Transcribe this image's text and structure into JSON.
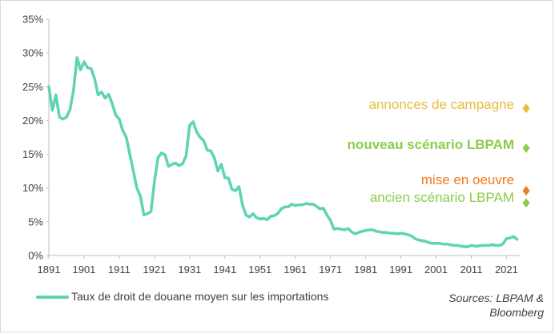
{
  "chart_data": {
    "type": "line",
    "title": "",
    "xlabel": "",
    "ylabel": "",
    "ylim": [
      0,
      35
    ],
    "xlim": [
      1891,
      2025
    ],
    "y_ticks": [
      "0%",
      "5%",
      "10%",
      "15%",
      "20%",
      "25%",
      "30%",
      "35%"
    ],
    "x_ticks": [
      "1891",
      "1901",
      "1911",
      "1921",
      "1931",
      "1941",
      "1951",
      "1961",
      "1971",
      "1981",
      "1991",
      "2001",
      "2011",
      "2021"
    ],
    "grid": false,
    "legend_position": "bottom-left",
    "series": [
      {
        "name": "Taux de droit de douane moyen sur les importations",
        "color": "#5ed3b5",
        "x": [
          1891,
          1892,
          1893,
          1894,
          1895,
          1896,
          1897,
          1898,
          1899,
          1900,
          1901,
          1902,
          1903,
          1904,
          1905,
          1906,
          1907,
          1908,
          1909,
          1910,
          1911,
          1912,
          1913,
          1914,
          1915,
          1916,
          1917,
          1918,
          1919,
          1920,
          1921,
          1922,
          1923,
          1924,
          1925,
          1926,
          1927,
          1928,
          1929,
          1930,
          1931,
          1932,
          1933,
          1934,
          1935,
          1936,
          1937,
          1938,
          1939,
          1940,
          1941,
          1942,
          1943,
          1944,
          1945,
          1946,
          1947,
          1948,
          1949,
          1950,
          1951,
          1952,
          1953,
          1954,
          1955,
          1956,
          1957,
          1958,
          1959,
          1960,
          1961,
          1962,
          1963,
          1964,
          1965,
          1966,
          1967,
          1968,
          1969,
          1970,
          1971,
          1972,
          1973,
          1974,
          1975,
          1976,
          1977,
          1978,
          1979,
          1980,
          1981,
          1982,
          1983,
          1984,
          1985,
          1986,
          1987,
          1988,
          1989,
          1990,
          1991,
          1992,
          1993,
          1994,
          1995,
          1996,
          1997,
          1998,
          1999,
          2000,
          2001,
          2002,
          2003,
          2004,
          2005,
          2006,
          2007,
          2008,
          2009,
          2010,
          2011,
          2012,
          2013,
          2014,
          2015,
          2016,
          2017,
          2018,
          2019,
          2020,
          2021,
          2022,
          2023,
          2024
        ],
        "values": [
          25.0,
          21.5,
          23.8,
          20.5,
          20.2,
          20.5,
          21.6,
          24.5,
          29.3,
          27.5,
          28.7,
          27.8,
          27.7,
          26.2,
          23.8,
          24.2,
          23.3,
          23.9,
          22.5,
          20.8,
          20.2,
          18.5,
          17.5,
          15.0,
          12.5,
          10.0,
          8.8,
          6.0,
          6.2,
          6.5,
          11.0,
          14.5,
          15.2,
          14.9,
          13.2,
          13.5,
          13.7,
          13.3,
          13.6,
          14.8,
          19.3,
          19.8,
          18.3,
          17.5,
          17.0,
          15.6,
          15.5,
          14.5,
          12.5,
          13.5,
          11.5,
          11.5,
          9.8,
          9.6,
          10.2,
          7.5,
          6.0,
          5.7,
          6.2,
          5.6,
          5.4,
          5.5,
          5.3,
          5.8,
          5.9,
          6.2,
          6.9,
          7.2,
          7.2,
          7.6,
          7.4,
          7.5,
          7.5,
          7.7,
          7.6,
          7.6,
          7.3,
          6.9,
          7.0,
          6.0,
          5.2,
          3.9,
          4.0,
          3.9,
          3.8,
          4.0,
          3.5,
          3.2,
          3.4,
          3.6,
          3.7,
          3.8,
          3.8,
          3.6,
          3.5,
          3.4,
          3.4,
          3.3,
          3.3,
          3.2,
          3.3,
          3.2,
          3.1,
          2.9,
          2.5,
          2.3,
          2.2,
          2.1,
          1.9,
          1.8,
          1.8,
          1.8,
          1.7,
          1.7,
          1.6,
          1.5,
          1.5,
          1.4,
          1.3,
          1.3,
          1.5,
          1.4,
          1.4,
          1.5,
          1.5,
          1.5,
          1.6,
          1.5,
          1.5,
          1.7,
          2.5,
          2.6,
          2.8,
          2.4
        ]
      }
    ],
    "annotations": [
      {
        "text": "annonces de campagne",
        "value": 21.8,
        "color": "#e5bd3a",
        "bold": false
      },
      {
        "text": "nouveau scénario LBPAM",
        "value": 15.9,
        "color": "#8dcc4a",
        "bold": true
      },
      {
        "text": "mise en oeuvre",
        "value": 9.6,
        "color": "#f0791e",
        "bold": false
      },
      {
        "text": "ancien scénario LBPAM",
        "value": 7.8,
        "color": "#8dcc4a",
        "bold": false
      }
    ],
    "source": [
      "Sources: LBPAM &",
      "Bloomberg"
    ]
  }
}
